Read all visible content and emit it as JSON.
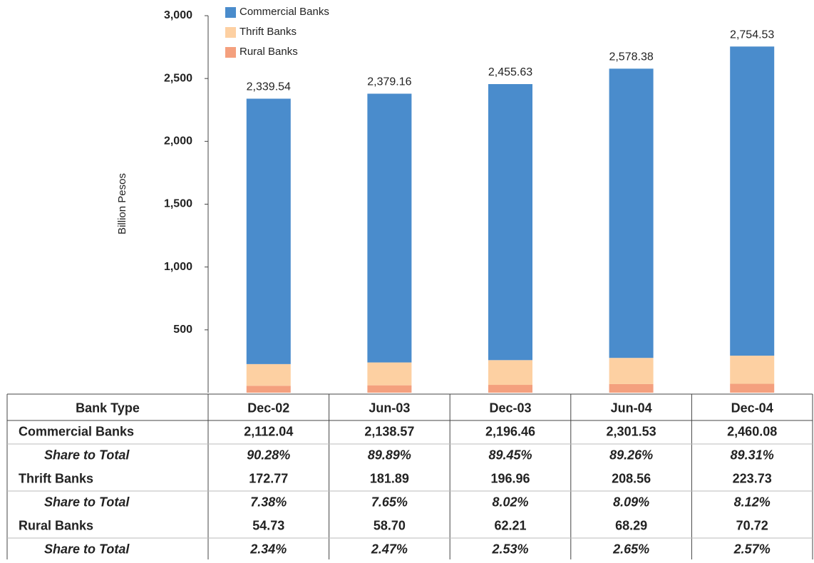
{
  "chart_data": {
    "type": "stacked_bar",
    "y_label": "Billion Pesos",
    "categories": [
      "Dec-02",
      "Jun-03",
      "Dec-03",
      "Jun-04",
      "Dec-04"
    ],
    "series": [
      {
        "name": "Commercial Banks",
        "color": "#4a8ccc",
        "values": [
          2112.04,
          2138.57,
          2196.46,
          2301.53,
          2460.08
        ],
        "value_labels": [
          "2,112.04",
          "2,138.57",
          "2,196.46",
          "2,301.53",
          "2,460.08"
        ],
        "share": {
          "values": [
            90.28,
            89.89,
            89.45,
            89.26,
            89.31
          ],
          "value_labels": [
            "90.28%",
            "89.89%",
            "89.45%",
            "89.26%",
            "89.31%"
          ]
        }
      },
      {
        "name": "Thrift Banks",
        "color": "#fdd0a2",
        "values": [
          172.77,
          181.89,
          196.96,
          208.56,
          223.73
        ],
        "share": {
          "values": [
            7.38,
            7.65,
            8.02,
            8.09,
            8.12
          ],
          "value_labels": [
            "7.38%",
            "7.65%",
            "8.02%",
            "8.09%",
            "8.12%"
          ]
        }
      },
      {
        "name": "Rural Banks",
        "color": "#f4a07e",
        "values": [
          54.73,
          58.7,
          62.21,
          68.29,
          70.72
        ],
        "value_labels": [
          "54.73",
          "58.70",
          "62.21",
          "68.29",
          "70.72"
        ],
        "share": {
          "values": [
            2.34,
            2.47,
            2.53,
            2.65,
            2.57
          ],
          "value_labels": [
            "2.34%",
            "2.47%",
            "2.53%",
            "2.65%",
            "2.57%"
          ]
        }
      }
    ],
    "totals": {
      "values": [
        2339.54,
        2379.16,
        2455.63,
        2578.38,
        2754.53
      ],
      "value_labels": [
        "2,339.54",
        "2,379.16",
        "2,455.63",
        "2,578.38",
        "2,754.53"
      ]
    },
    "ylim": [
      0,
      3000
    ],
    "yticks": [
      500,
      {
        "value": 1000,
        "label": "1,000"
      },
      {
        "value": 1500,
        "label": "1,500"
      },
      {
        "value": 2000,
        "label": "2,000"
      },
      {
        "value": 2500,
        "label": "2,500"
      },
      {
        "value": 3000,
        "label": "3,000"
      }
    ],
    "grid": false,
    "legend": "top-left",
    "table": {
      "header": "Bank Type",
      "share_label": "Share to Total"
    }
  }
}
